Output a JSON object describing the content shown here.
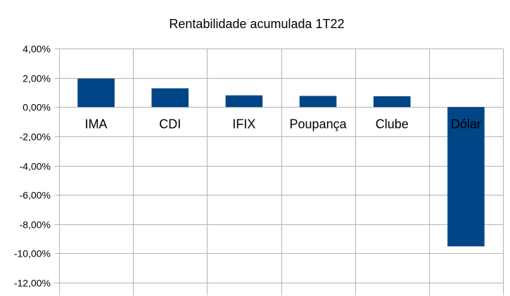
{
  "chart_data": {
    "type": "bar",
    "title": "Rentabilidade acumulada 1T22",
    "categories": [
      "IMA",
      "CDI",
      "IFIX",
      "Poupança",
      "Clube",
      "Dólar"
    ],
    "values": [
      1.95,
      1.28,
      0.8,
      0.76,
      0.74,
      -9.52
    ],
    "ylim": [
      -12,
      4
    ],
    "yticks": [
      4,
      2,
      0,
      -2,
      -4,
      -6,
      -8,
      -10,
      -12
    ],
    "ytick_labels": [
      "4,00%",
      "2,00%",
      "0,00%",
      "-2,00%",
      "-4,00%",
      "-6,00%",
      "-8,00%",
      "-10,00%",
      "-12,00%"
    ],
    "bar_color": "#004586",
    "grid": true,
    "legend": "none"
  }
}
